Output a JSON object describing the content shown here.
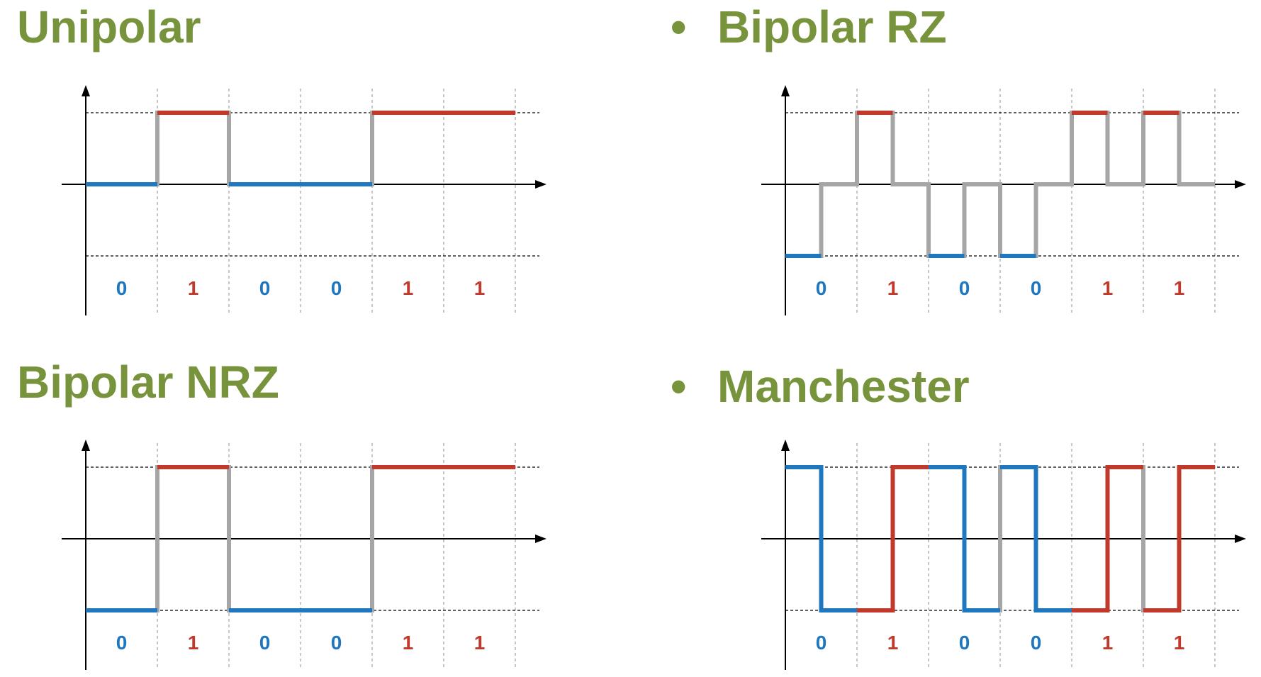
{
  "colors": {
    "title": "#77933c",
    "zero": "#1f77c0",
    "one": "#c0392b",
    "transition": "#a6a6a6",
    "axis": "#000000",
    "grid": "#8c8c8c"
  },
  "bullet_glyph": "•",
  "bits": [
    "0",
    "1",
    "0",
    "0",
    "1",
    "1"
  ],
  "panels": [
    {
      "id": "unipolar",
      "title": "Unipolar",
      "bullet": false,
      "encoding": "unipolar"
    },
    {
      "id": "bipolar-rz",
      "title": "Bipolar RZ",
      "bullet": true,
      "encoding": "bipolar-rz"
    },
    {
      "id": "bipolar-nrz",
      "title": "Bipolar NRZ",
      "bullet": false,
      "encoding": "bipolar-nrz"
    },
    {
      "id": "manchester",
      "title": "Manchester",
      "bullet": true,
      "encoding": "manchester"
    }
  ]
}
